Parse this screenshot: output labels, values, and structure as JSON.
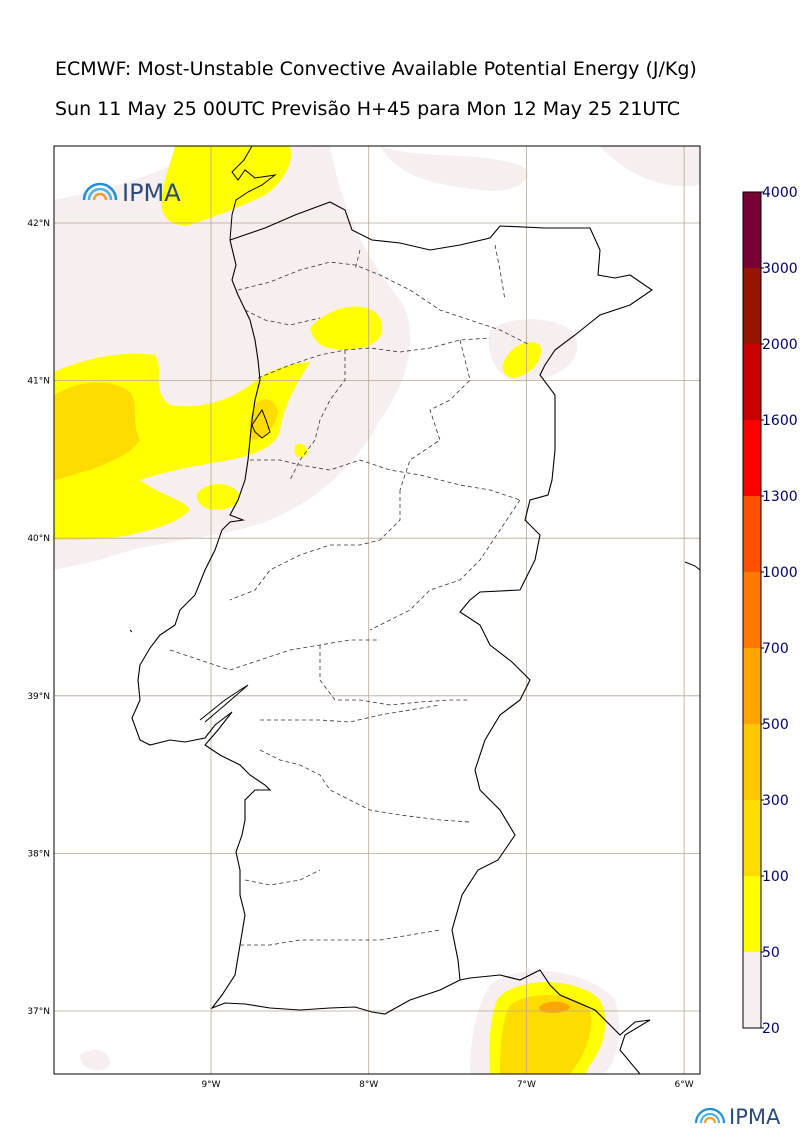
{
  "title_line1": "ECMWF: Most-Unstable Convective Available Potential Energy (J/Kg)",
  "title_line2": "Sun 11 May 25 00UTC Previsão H+45 para Mon 12 May 25 21UTC",
  "logo_text": "IPMA",
  "footer_logo_text": "IPMA",
  "latitudes": [
    {
      "label": "42°N",
      "value": 42
    },
    {
      "label": "41°N",
      "value": 41
    },
    {
      "label": "40°N",
      "value": 40
    },
    {
      "label": "39°N",
      "value": 39
    },
    {
      "label": "38°N",
      "value": 38
    },
    {
      "label": "37°N",
      "value": 37
    }
  ],
  "longitudes": [
    {
      "label": "9°W",
      "value": -9
    },
    {
      "label": "8°W",
      "value": -8
    },
    {
      "label": "7°W",
      "value": -7
    },
    {
      "label": "6°W",
      "value": -6
    }
  ],
  "colorbar": {
    "levels": [
      "20",
      "50",
      "100",
      "300",
      "500",
      "700",
      "1000",
      "1300",
      "1600",
      "2000",
      "3000",
      "4000"
    ],
    "colors": [
      "#f7eef0",
      "#ffff00",
      "#ffdc00",
      "#ffc800",
      "#ffa500",
      "#ff7800",
      "#ff5000",
      "#ff0000",
      "#c80000",
      "#961400",
      "#780032",
      "#6e1400"
    ]
  }
}
